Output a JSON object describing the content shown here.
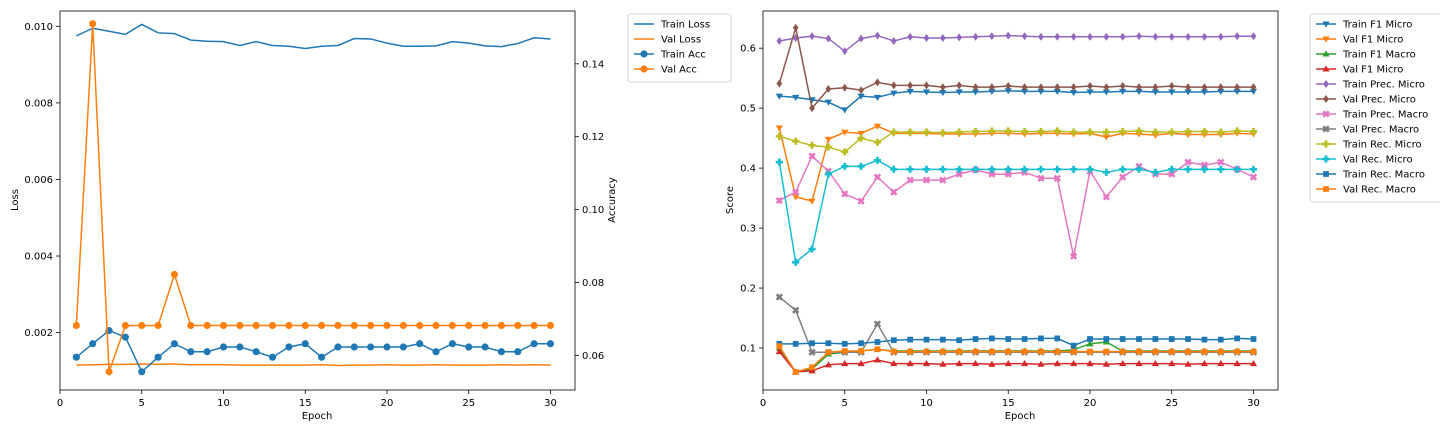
{
  "chart_data": [
    {
      "type": "line",
      "xlabel": "Epoch",
      "ylabel": "Loss",
      "y2label": "Accuracy",
      "x": [
        1,
        2,
        3,
        4,
        5,
        6,
        7,
        8,
        9,
        10,
        11,
        12,
        13,
        14,
        15,
        16,
        17,
        18,
        19,
        20,
        21,
        22,
        23,
        24,
        25,
        26,
        27,
        28,
        29,
        30
      ],
      "xlim": [
        0,
        31.5
      ],
      "ylim": [
        0.0005,
        0.0104
      ],
      "y2lim": [
        0.0505,
        0.1545
      ],
      "xticks": [
        0,
        5,
        10,
        15,
        20,
        25,
        30
      ],
      "yticks": [
        0.002,
        0.004,
        0.006,
        0.008,
        0.01
      ],
      "ytick_labels": [
        "0.002",
        "0.004",
        "0.006",
        "0.008",
        "0.010"
      ],
      "y2ticks": [
        0.06,
        0.08,
        0.1,
        0.12,
        0.14
      ],
      "y2tick_labels": [
        "0.06",
        "0.08",
        "0.10",
        "0.12",
        "0.14"
      ],
      "legend_position": "outside-right-top",
      "series": [
        {
          "name": "Train Loss",
          "axis": "left",
          "color": "#1f77b4",
          "marker": "none",
          "values": [
            0.00975,
            0.00995,
            0.00987,
            0.00979,
            0.01005,
            0.00983,
            0.00981,
            0.00964,
            0.00961,
            0.0096,
            0.0095,
            0.0096,
            0.0095,
            0.00948,
            0.00942,
            0.00948,
            0.0095,
            0.00968,
            0.00967,
            0.00956,
            0.00948,
            0.00948,
            0.00949,
            0.0096,
            0.00956,
            0.00949,
            0.00947,
            0.00955,
            0.0097,
            0.00967
          ]
        },
        {
          "name": "Val Loss",
          "axis": "left",
          "color": "#ff7f0e",
          "marker": "none",
          "values": [
            0.00115,
            0.00116,
            0.00117,
            0.00117,
            0.00118,
            0.00117,
            0.00118,
            0.00116,
            0.00116,
            0.00116,
            0.00115,
            0.00115,
            0.00115,
            0.00115,
            0.00115,
            0.00116,
            0.00114,
            0.00115,
            0.00115,
            0.00116,
            0.00115,
            0.00115,
            0.00116,
            0.00115,
            0.00115,
            0.00115,
            0.00116,
            0.00115,
            0.00116,
            0.00115
          ]
        },
        {
          "name": "Train Acc",
          "axis": "right",
          "color": "#1f77b4",
          "marker": "circle",
          "values": [
            0.0595,
            0.0632,
            0.0668,
            0.065,
            0.0555,
            0.0595,
            0.0632,
            0.061,
            0.061,
            0.0623,
            0.0623,
            0.061,
            0.0595,
            0.0623,
            0.0632,
            0.0595,
            0.0623,
            0.0623,
            0.0623,
            0.0623,
            0.0623,
            0.0632,
            0.061,
            0.0632,
            0.0623,
            0.0623,
            0.061,
            0.061,
            0.0632,
            0.0632
          ]
        },
        {
          "name": "Val Acc",
          "axis": "right",
          "color": "#ff7f0e",
          "marker": "circle",
          "values": [
            0.0682,
            0.151,
            0.0555,
            0.0682,
            0.0682,
            0.0682,
            0.0822,
            0.0682,
            0.0682,
            0.0682,
            0.0682,
            0.0682,
            0.0682,
            0.0682,
            0.0682,
            0.0682,
            0.0682,
            0.0682,
            0.0682,
            0.0682,
            0.0682,
            0.0682,
            0.0682,
            0.0682,
            0.0682,
            0.0682,
            0.0682,
            0.0682,
            0.0682,
            0.0682
          ]
        }
      ]
    },
    {
      "type": "line",
      "xlabel": "Epoch",
      "ylabel": "Score",
      "x": [
        1,
        2,
        3,
        4,
        5,
        6,
        7,
        8,
        9,
        10,
        11,
        12,
        13,
        14,
        15,
        16,
        17,
        18,
        19,
        20,
        21,
        22,
        23,
        24,
        25,
        26,
        27,
        28,
        29,
        30
      ],
      "xlim": [
        0,
        31.5
      ],
      "ylim": [
        0.03,
        0.662
      ],
      "xticks": [
        0,
        5,
        10,
        15,
        20,
        25,
        30
      ],
      "yticks": [
        0.1,
        0.2,
        0.3,
        0.4,
        0.5,
        0.6
      ],
      "ytick_labels": [
        "0.1",
        "0.2",
        "0.3",
        "0.4",
        "0.5",
        "0.6"
      ],
      "legend_position": "outside-right-top",
      "series": [
        {
          "name": "Train F1 Micro",
          "color": "#1f77b4",
          "marker": "tri-down",
          "values": [
            0.52,
            0.518,
            0.514,
            0.51,
            0.497,
            0.52,
            0.518,
            0.525,
            0.528,
            0.527,
            0.526,
            0.527,
            0.527,
            0.528,
            0.529,
            0.528,
            0.528,
            0.528,
            0.526,
            0.527,
            0.527,
            0.528,
            0.528,
            0.527,
            0.527,
            0.527,
            0.527,
            0.528,
            0.528,
            0.528
          ]
        },
        {
          "name": "Val F1 Micro",
          "color": "#ff7f0e",
          "marker": "tri-down",
          "values": [
            0.467,
            0.352,
            0.345,
            0.448,
            0.46,
            0.458,
            0.47,
            0.458,
            0.458,
            0.458,
            0.457,
            0.457,
            0.457,
            0.458,
            0.458,
            0.457,
            0.458,
            0.458,
            0.457,
            0.458,
            0.452,
            0.458,
            0.457,
            0.455,
            0.458,
            0.456,
            0.456,
            0.456,
            0.458,
            0.457
          ]
        },
        {
          "name": "Train F1 Macro",
          "color": "#2ca02c",
          "marker": "tri-up",
          "values": [
            0.1,
            0.06,
            0.065,
            0.09,
            0.093,
            0.095,
            0.098,
            0.095,
            0.095,
            0.095,
            0.095,
            0.095,
            0.095,
            0.095,
            0.095,
            0.095,
            0.095,
            0.095,
            0.097,
            0.107,
            0.11,
            0.095,
            0.095,
            0.095,
            0.095,
            0.095,
            0.095,
            0.095,
            0.095,
            0.095
          ]
        },
        {
          "name": "Val F1 Micro",
          "color": "#d62728",
          "marker": "tri-up",
          "values": [
            0.094,
            0.06,
            0.062,
            0.072,
            0.074,
            0.074,
            0.08,
            0.074,
            0.074,
            0.074,
            0.073,
            0.074,
            0.074,
            0.073,
            0.074,
            0.074,
            0.073,
            0.074,
            0.074,
            0.074,
            0.073,
            0.074,
            0.074,
            0.074,
            0.074,
            0.073,
            0.074,
            0.074,
            0.074,
            0.074
          ]
        },
        {
          "name": "Train Prec. Micro",
          "color": "#9467bd",
          "marker": "diamond",
          "values": [
            0.612,
            0.617,
            0.62,
            0.616,
            0.595,
            0.616,
            0.621,
            0.612,
            0.619,
            0.617,
            0.617,
            0.618,
            0.619,
            0.62,
            0.621,
            0.62,
            0.619,
            0.619,
            0.619,
            0.619,
            0.619,
            0.619,
            0.62,
            0.619,
            0.619,
            0.619,
            0.619,
            0.619,
            0.62,
            0.62
          ]
        },
        {
          "name": "Val Prec. Micro",
          "color": "#8c564b",
          "marker": "diamond",
          "values": [
            0.541,
            0.634,
            0.5,
            0.532,
            0.534,
            0.53,
            0.543,
            0.538,
            0.538,
            0.538,
            0.535,
            0.538,
            0.535,
            0.535,
            0.537,
            0.535,
            0.535,
            0.535,
            0.535,
            0.537,
            0.535,
            0.537,
            0.535,
            0.535,
            0.537,
            0.535,
            0.535,
            0.535,
            0.535,
            0.535
          ]
        },
        {
          "name": "Train Prec. Macro",
          "color": "#e377c2",
          "marker": "x",
          "values": [
            0.346,
            0.36,
            0.42,
            0.395,
            0.357,
            0.345,
            0.385,
            0.36,
            0.38,
            0.38,
            0.38,
            0.39,
            0.397,
            0.39,
            0.39,
            0.393,
            0.383,
            0.383,
            0.253,
            0.395,
            0.352,
            0.385,
            0.403,
            0.39,
            0.39,
            0.41,
            0.405,
            0.41,
            0.398,
            0.385
          ]
        },
        {
          "name": "Val Prec. Macro",
          "color": "#7f7f7f",
          "marker": "x",
          "values": [
            0.185,
            0.163,
            0.093,
            0.093,
            0.093,
            0.093,
            0.14,
            0.093,
            0.093,
            0.093,
            0.093,
            0.093,
            0.093,
            0.093,
            0.093,
            0.093,
            0.093,
            0.093,
            0.093,
            0.093,
            0.093,
            0.093,
            0.093,
            0.093,
            0.093,
            0.093,
            0.093,
            0.093,
            0.093,
            0.093
          ]
        },
        {
          "name": "Train Rec. Micro",
          "color": "#bcbd22",
          "marker": "plus",
          "values": [
            0.453,
            0.445,
            0.438,
            0.435,
            0.427,
            0.45,
            0.443,
            0.46,
            0.46,
            0.46,
            0.459,
            0.46,
            0.461,
            0.462,
            0.462,
            0.461,
            0.461,
            0.462,
            0.46,
            0.46,
            0.46,
            0.461,
            0.462,
            0.46,
            0.46,
            0.461,
            0.461,
            0.46,
            0.462,
            0.461
          ]
        },
        {
          "name": "Val Rec. Micro",
          "color": "#17becf",
          "marker": "plus",
          "values": [
            0.41,
            0.243,
            0.265,
            0.39,
            0.403,
            0.403,
            0.413,
            0.398,
            0.398,
            0.398,
            0.398,
            0.398,
            0.398,
            0.398,
            0.398,
            0.398,
            0.398,
            0.398,
            0.398,
            0.398,
            0.393,
            0.398,
            0.398,
            0.393,
            0.398,
            0.398,
            0.398,
            0.398,
            0.398,
            0.398
          ]
        },
        {
          "name": "Train Rec. Macro",
          "color": "#1f77b4",
          "marker": "square",
          "values": [
            0.107,
            0.107,
            0.108,
            0.108,
            0.107,
            0.108,
            0.11,
            0.113,
            0.114,
            0.114,
            0.114,
            0.113,
            0.115,
            0.116,
            0.115,
            0.115,
            0.116,
            0.116,
            0.104,
            0.115,
            0.115,
            0.115,
            0.115,
            0.115,
            0.115,
            0.115,
            0.114,
            0.114,
            0.116,
            0.115
          ]
        },
        {
          "name": "Val Rec. Macro",
          "color": "#ff7f0e",
          "marker": "square",
          "values": [
            0.103,
            0.06,
            0.068,
            0.093,
            0.095,
            0.095,
            0.098,
            0.094,
            0.094,
            0.094,
            0.094,
            0.094,
            0.094,
            0.094,
            0.094,
            0.094,
            0.094,
            0.094,
            0.094,
            0.094,
            0.094,
            0.094,
            0.094,
            0.094,
            0.094,
            0.094,
            0.094,
            0.094,
            0.094,
            0.094
          ]
        }
      ]
    }
  ]
}
